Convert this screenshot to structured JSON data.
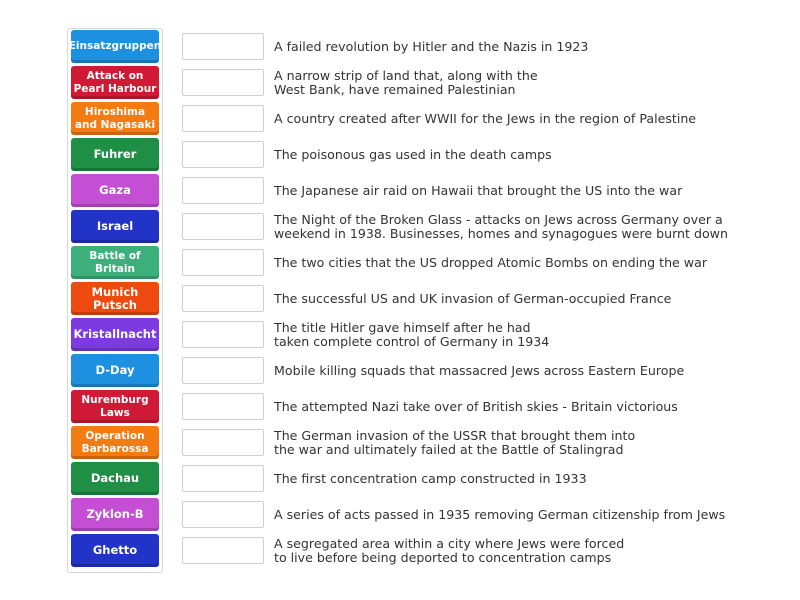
{
  "tiles": [
    {
      "label": "Einsatzgruppen",
      "color": "#1e90e0"
    },
    {
      "label": "Attack on\nPearl Harbour",
      "color": "#d01a35"
    },
    {
      "label": "Hiroshima\nand Nagasaki",
      "color": "#f47a12"
    },
    {
      "label": "Fuhrer",
      "color": "#1e8f45"
    },
    {
      "label": "Gaza",
      "color": "#c54fd4"
    },
    {
      "label": "Israel",
      "color": "#2233c8"
    },
    {
      "label": "Battle of\nBritain",
      "color": "#3cb07a"
    },
    {
      "label": "Munich\nPutsch",
      "color": "#ee4a10"
    },
    {
      "label": "Kristallnacht",
      "color": "#7d3ae0"
    },
    {
      "label": "D-Day",
      "color": "#1e90e0"
    },
    {
      "label": "Nuremburg\nLaws",
      "color": "#d01a35"
    },
    {
      "label": "Operation\nBarbarossa",
      "color": "#f47a12"
    },
    {
      "label": "Dachau",
      "color": "#1e8f45"
    },
    {
      "label": "Zyklon-B",
      "color": "#c54fd4"
    },
    {
      "label": "Ghetto",
      "color": "#2233c8"
    }
  ],
  "clues": [
    {
      "lines": [
        "A failed revolution by Hitler and the Nazis in 1923"
      ]
    },
    {
      "lines": [
        "A narrow strip of land that, along with the",
        "West Bank, have remained Palestinian"
      ]
    },
    {
      "lines": [
        "A country created after WWII for the Jews in the region of Palestine"
      ]
    },
    {
      "lines": [
        "The poisonous gas used in the death camps"
      ]
    },
    {
      "lines": [
        "The Japanese air raid on Hawaii that brought the US into the war"
      ]
    },
    {
      "lines": [
        "The Night of the Broken Glass - attacks on Jews across Germany over a",
        "weekend in 1938. Businesses, homes and synagogues were burnt down"
      ]
    },
    {
      "lines": [
        "The two cities that the US dropped Atomic Bombs on ending the war"
      ]
    },
    {
      "lines": [
        "The successful US and UK invasion of German-occupied France"
      ]
    },
    {
      "lines": [
        "The title Hitler gave himself after he had",
        "taken complete control of Germany in 1934"
      ]
    },
    {
      "lines": [
        "Mobile killing squads that massacred Jews across Eastern Europe"
      ]
    },
    {
      "lines": [
        "The attempted Nazi take over of British skies - Britain victorious"
      ]
    },
    {
      "lines": [
        "The German invasion of the USSR that brought them into",
        "the war and ultimately failed at the Battle of Stalingrad"
      ]
    },
    {
      "lines": [
        "The first concentration camp constructed in 1933"
      ]
    },
    {
      "lines": [
        "A series of acts passed in 1935 removing German citizenship from Jews"
      ]
    },
    {
      "lines": [
        "A segregated area within a city where Jews were forced",
        "to live before being deported to concentration camps"
      ]
    }
  ]
}
